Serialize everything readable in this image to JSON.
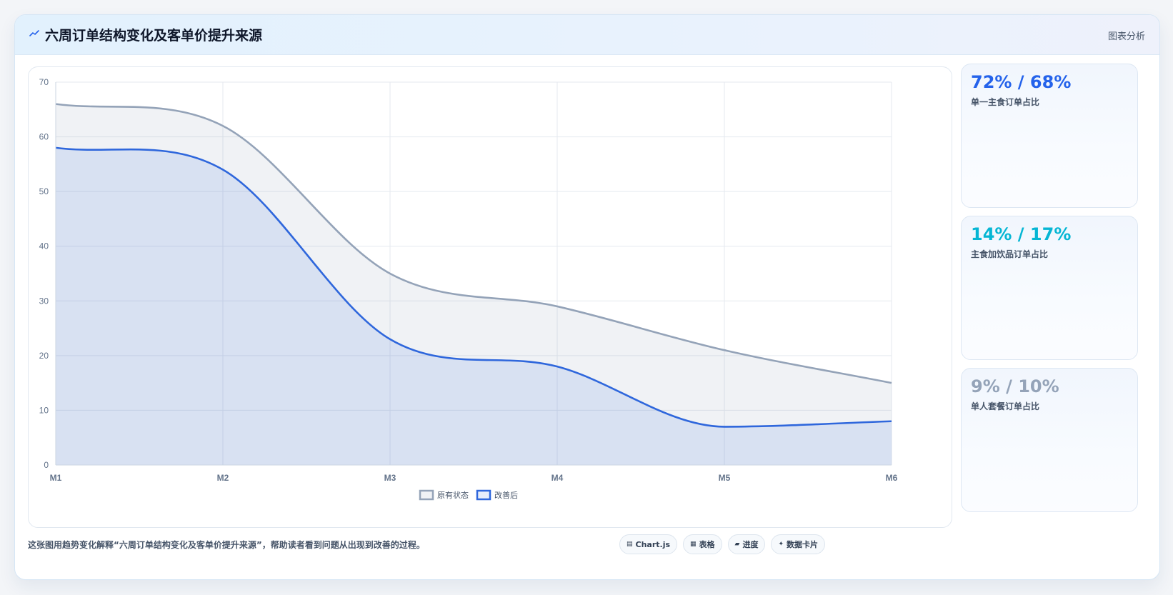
{
  "header": {
    "title": "六周订单结构变化及客单价提升来源",
    "tag": "图表分析",
    "icon": "trend-line-icon"
  },
  "chart_data": {
    "type": "area",
    "categories": [
      "M1",
      "M2",
      "M3",
      "M4",
      "M5",
      "M6"
    ],
    "series": [
      {
        "name": "原有状态",
        "values": [
          66,
          62,
          35,
          29,
          21,
          15
        ],
        "color": "#94a3b8"
      },
      {
        "name": "改善后",
        "values": [
          58,
          54,
          23,
          18,
          7,
          8
        ],
        "color": "#2f67dc"
      }
    ],
    "ylim": [
      0,
      70
    ],
    "yticks": [
      0,
      10,
      20,
      30,
      40,
      50,
      60,
      70
    ],
    "grid": true,
    "legend": "bottom-center",
    "stacked": false,
    "smooth": true
  },
  "stats": [
    {
      "value": "72% / 68%",
      "label": "单一主食订单占比",
      "color": "#2563eb"
    },
    {
      "value": "14% / 17%",
      "label": "主食加饮品订单占比",
      "color": "#06b6d4"
    },
    {
      "value": "9% / 10%",
      "label": "单人套餐订单占比",
      "color": "#94a3b8"
    }
  ],
  "footer": {
    "note": "这张图用趋势变化解释“六周订单结构变化及客单价提升来源”，帮助读者看到问题从出现到改善的过程。"
  },
  "chips": [
    {
      "label": "Chart.js",
      "icon": "chart-icon"
    },
    {
      "label": "表格",
      "icon": "table-icon"
    },
    {
      "label": "进度",
      "icon": "progress-icon"
    },
    {
      "label": "数据卡片",
      "icon": "sparkle-icon"
    }
  ]
}
